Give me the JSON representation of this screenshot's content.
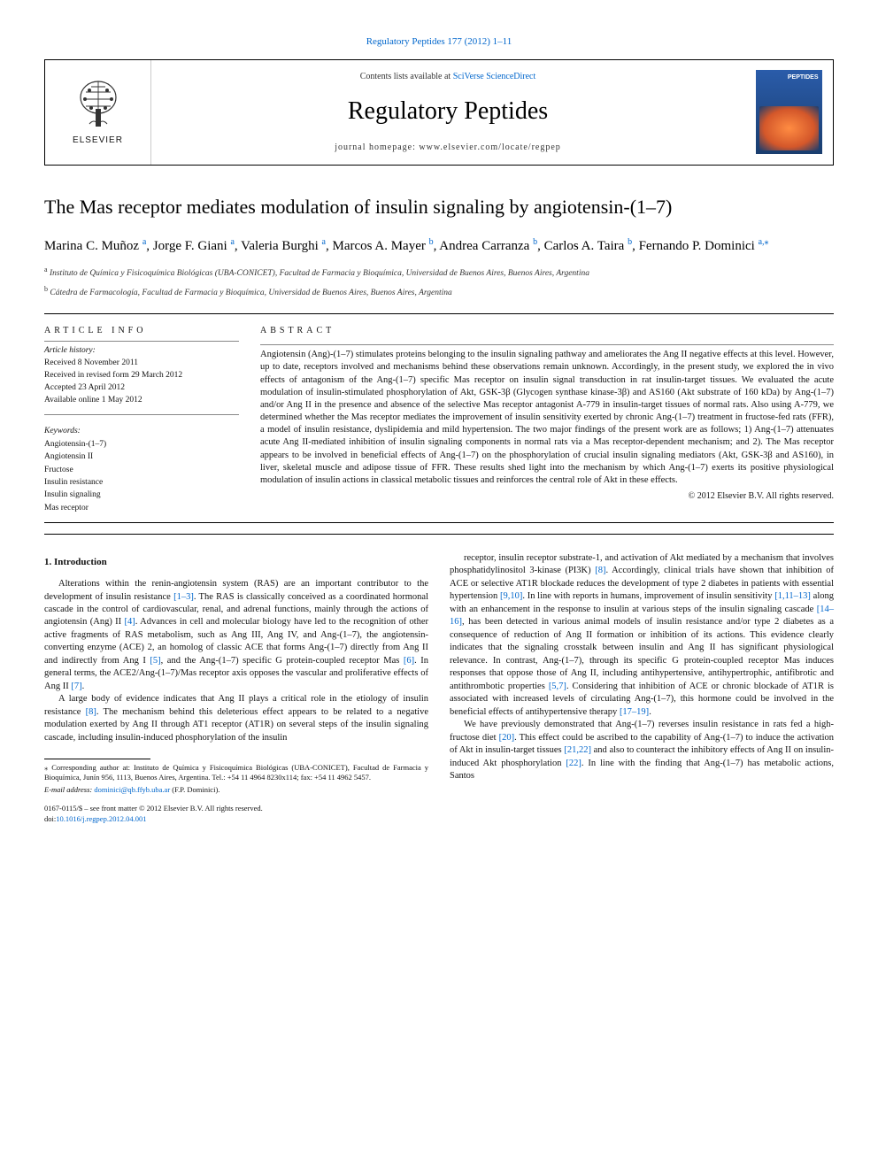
{
  "top_citation": "Regulatory Peptides 177 (2012) 1–11",
  "header": {
    "contents_prefix": "Contents lists available at ",
    "contents_link": "SciVerse ScienceDirect",
    "journal_name": "Regulatory Peptides",
    "homepage": "journal homepage: www.elsevier.com/locate/regpep",
    "elsevier": "ELSEVIER",
    "cover_label": "PEPTIDES"
  },
  "title": "The Mas receptor mediates modulation of insulin signaling by angiotensin-(1–7)",
  "authors_html": "Marina C. Muñoz <sup>a</sup>, Jorge F. Giani <sup>a</sup>, Valeria Burghi <sup>a</sup>, Marcos A. Mayer <sup>b</sup>, Andrea Carranza <sup>b</sup>, Carlos A. Taira <sup>b</sup>, Fernando P. Dominici <sup>a,</sup><sup class='star'>⁎</sup>",
  "affiliations": [
    {
      "sup": "a",
      "text": "Instituto de Química y Fisicoquímica Biológicas (UBA-CONICET), Facultad de Farmacia y Bioquímica, Universidad de Buenos Aires, Buenos Aires, Argentina"
    },
    {
      "sup": "b",
      "text": "Cátedra de Farmacología, Facultad de Farmacia y Bioquímica, Universidad de Buenos Aires, Buenos Aires, Argentina"
    }
  ],
  "article_info": {
    "heading": "article info",
    "history_head": "Article history:",
    "history": [
      "Received 8 November 2011",
      "Received in revised form 29 March 2012",
      "Accepted 23 April 2012",
      "Available online 1 May 2012"
    ],
    "keywords_head": "Keywords:",
    "keywords": [
      "Angiotensin-(1–7)",
      "Angiotensin II",
      "Fructose",
      "Insulin resistance",
      "Insulin signaling",
      "Mas receptor"
    ]
  },
  "abstract": {
    "heading": "abstract",
    "text": "Angiotensin (Ang)-(1–7) stimulates proteins belonging to the insulin signaling pathway and ameliorates the Ang II negative effects at this level. However, up to date, receptors involved and mechanisms behind these observations remain unknown. Accordingly, in the present study, we explored the in vivo effects of antagonism of the Ang-(1–7) specific Mas receptor on insulin signal transduction in rat insulin-target tissues. We evaluated the acute modulation of insulin-stimulated phosphorylation of Akt, GSK-3β (Glycogen synthase kinase-3β) and AS160 (Akt substrate of 160 kDa) by Ang-(1–7) and/or Ang II in the presence and absence of the selective Mas receptor antagonist A-779 in insulin-target tissues of normal rats. Also using A-779, we determined whether the Mas receptor mediates the improvement of insulin sensitivity exerted by chronic Ang-(1–7) treatment in fructose-fed rats (FFR), a model of insulin resistance, dyslipidemia and mild hypertension. The two major findings of the present work are as follows; 1) Ang-(1–7) attenuates acute Ang II-mediated inhibition of insulin signaling components in normal rats via a Mas receptor-dependent mechanism; and 2). The Mas receptor appears to be involved in beneficial effects of Ang-(1–7) on the phosphorylation of crucial insulin signaling mediators (Akt, GSK-3β and AS160), in liver, skeletal muscle and adipose tissue of FFR. These results shed light into the mechanism by which Ang-(1–7) exerts its positive physiological modulation of insulin actions in classical metabolic tissues and reinforces the central role of Akt in these effects.",
    "copyright": "© 2012 Elsevier B.V. All rights reserved."
  },
  "intro": {
    "heading": "1. Introduction",
    "p1_a": "Alterations within the renin-angiotensin system (RAS) are an important contributor to the development of insulin resistance ",
    "p1_ref1": "[1–3]",
    "p1_b": ". The RAS is classically conceived as a coordinated hormonal cascade in the control of cardiovascular, renal, and adrenal functions, mainly through the actions of angiotensin (Ang) II ",
    "p1_ref2": "[4]",
    "p1_c": ". Advances in cell and molecular biology have led to the recognition of other active fragments of RAS metabolism, such as Ang III, Ang IV, and Ang-(1–7), the angiotensin-converting enzyme (ACE) 2, an homolog of classic ACE that forms Ang-(1–7) directly from Ang II and indirectly from Ang I ",
    "p1_ref3": "[5]",
    "p1_d": ", and the Ang-(1–7) specific G protein-coupled receptor Mas ",
    "p1_ref4": "[6]",
    "p1_e": ". In general terms, the ACE2/Ang-(1–7)/Mas receptor axis opposes the vascular and proliferative effects of Ang II ",
    "p1_ref5": "[7]",
    "p1_f": ".",
    "p2_a": "A large body of evidence indicates that Ang II plays a critical role in the etiology of insulin resistance ",
    "p2_ref1": "[8]",
    "p2_b": ". The mechanism behind this deleterious effect appears to be related to a negative modulation exerted by Ang II through AT1 receptor (AT1R) on several steps of the insulin signaling cascade, including insulin-induced phosphorylation of the insulin",
    "p3_a": "receptor, insulin receptor substrate-1, and activation of Akt mediated by a mechanism that involves phosphatidylinositol 3-kinase (PI3K) ",
    "p3_ref1": "[8]",
    "p3_b": ". Accordingly, clinical trials have shown that inhibition of ACE or selective AT1R blockade reduces the development of type 2 diabetes in patients with essential hypertension ",
    "p3_ref2": "[9,10]",
    "p3_c": ". In line with reports in humans, improvement of insulin sensitivity ",
    "p3_ref3": "[1,11–13]",
    "p3_d": " along with an enhancement in the response to insulin at various steps of the insulin signaling cascade ",
    "p3_ref4": "[14–16]",
    "p3_e": ", has been detected in various animal models of insulin resistance and/or type 2 diabetes as a consequence of reduction of Ang II formation or inhibition of its actions. This evidence clearly indicates that the signaling crosstalk between insulin and Ang II has significant physiological relevance. In contrast, Ang-(1–7), through its specific G protein-coupled receptor Mas induces responses that oppose those of Ang II, including antihypertensive, antihypertrophic, antifibrotic and antithrombotic properties ",
    "p3_ref5": "[5,7]",
    "p3_f": ". Considering that inhibition of ACE or chronic blockade of AT1R is associated with increased levels of circulating Ang-(1–7), this hormone could be involved in the beneficial effects of antihypertensive therapy ",
    "p3_ref6": "[17–19]",
    "p3_g": ".",
    "p4_a": "We have previously demonstrated that Ang-(1–7) reverses insulin resistance in rats fed a high-fructose diet ",
    "p4_ref1": "[20]",
    "p4_b": ". This effect could be ascribed to the capability of Ang-(1–7) to induce the activation of Akt in insulin-target tissues ",
    "p4_ref2": "[21,22]",
    "p4_c": " and also to counteract the inhibitory effects of Ang II on insulin-induced Akt phosphorylation ",
    "p4_ref3": "[22]",
    "p4_d": ". In line with the finding that Ang-(1–7) has metabolic actions, Santos"
  },
  "footnotes": {
    "corr": "⁎ Corresponding author at: Instituto de Química y Fisicoquímica Biológicas (UBA-CONICET), Facultad de Farmacia y Bioquímica, Junín 956, 1113, Buenos Aires, Argentina. Tel.: +54 11 4964 8230x114; fax: +54 11 4962 5457.",
    "email_label": "E-mail address: ",
    "email": "dominici@qb.ffyb.uba.ar",
    "email_who": " (F.P. Dominici)."
  },
  "bottom": {
    "line1": "0167-0115/$ – see front matter © 2012 Elsevier B.V. All rights reserved.",
    "doi_label": "doi:",
    "doi": "10.1016/j.regpep.2012.04.001"
  },
  "colors": {
    "link": "#0066cc",
    "text": "#111111",
    "rule": "#000000"
  }
}
